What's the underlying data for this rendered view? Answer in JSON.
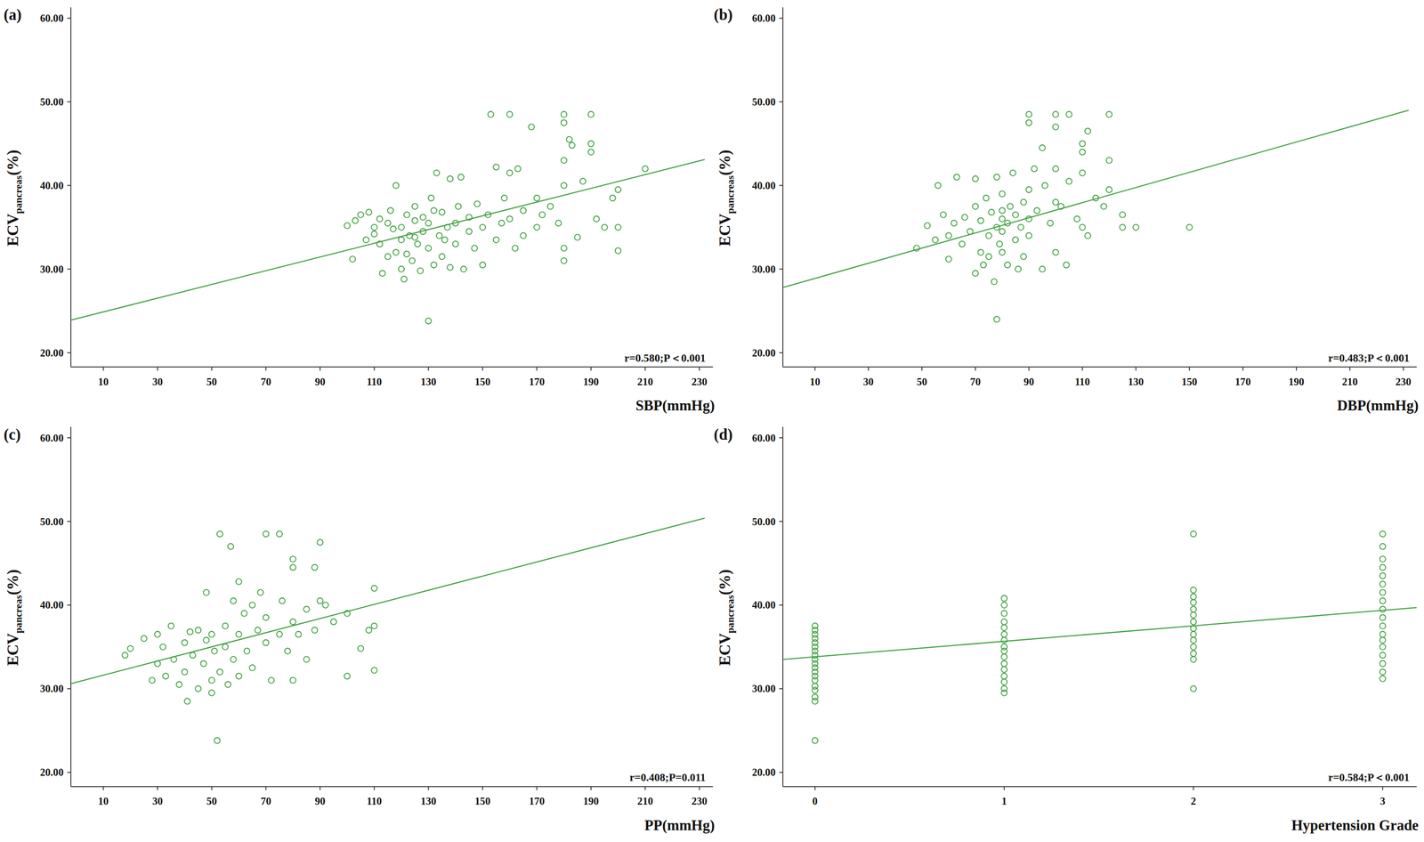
{
  "chart_data": [
    {
      "type": "scatter",
      "title": "(a)",
      "xlabel": "SBP(mmHg)",
      "ylabel": {
        "text": "ECV",
        "subscript": "pancreas",
        "suffix": "(%)"
      },
      "annotation": "r=0.580;P＜0.001",
      "xlim": [
        -2,
        235
      ],
      "ylim": [
        18.3,
        61.3
      ],
      "xticks": [
        10,
        30,
        50,
        70,
        90,
        110,
        130,
        150,
        170,
        190,
        210,
        230
      ],
      "yticks": [
        {
          "value": 20,
          "label": "20.00"
        },
        {
          "value": 30,
          "label": "30.00"
        },
        {
          "value": 40,
          "label": "40.00"
        },
        {
          "value": 50,
          "label": "50.00"
        },
        {
          "value": 60,
          "label": "60.00"
        }
      ],
      "series": [
        {
          "type": "scatter",
          "marker": "circle",
          "color": "#3f9f3f",
          "x": [
            100,
            102,
            103,
            105,
            107,
            108,
            110,
            110,
            112,
            112,
            113,
            115,
            115,
            116,
            117,
            118,
            118,
            120,
            120,
            120,
            121,
            122,
            123,
            124,
            125,
            125,
            126,
            127,
            128,
            128,
            130,
            130,
            130,
            131,
            132,
            132,
            133,
            134,
            135,
            135,
            136,
            137,
            138,
            138,
            140,
            140,
            141,
            142,
            143,
            145,
            145,
            147,
            148,
            150,
            150,
            152,
            153,
            155,
            155,
            157,
            158,
            160,
            160,
            160,
            162,
            163,
            165,
            165,
            168,
            170,
            170,
            172,
            175,
            178,
            180,
            180,
            180,
            180,
            180,
            180,
            182,
            183,
            185,
            187,
            190,
            190,
            190,
            192,
            195,
            198,
            200,
            200,
            200,
            210,
            125,
            122
          ],
          "values": [
            35.2,
            31.2,
            35.8,
            36.5,
            33.5,
            36.8,
            35.0,
            34.2,
            36.0,
            33.0,
            29.5,
            35.5,
            31.5,
            37.0,
            34.8,
            40.0,
            32.0,
            35.0,
            33.5,
            30.0,
            28.8,
            36.5,
            34.0,
            31.0,
            37.5,
            35.8,
            33.0,
            29.8,
            36.2,
            34.5,
            23.8,
            35.5,
            32.5,
            38.5,
            37.0,
            30.5,
            41.5,
            34.0,
            36.8,
            31.5,
            33.5,
            35.0,
            30.2,
            40.8,
            35.5,
            33.0,
            37.5,
            41.0,
            30.0,
            34.5,
            36.2,
            32.5,
            37.8,
            30.5,
            35.0,
            36.5,
            48.5,
            42.2,
            33.5,
            35.5,
            38.5,
            48.5,
            41.5,
            36.0,
            32.5,
            42.0,
            37.0,
            34.0,
            47.0,
            38.5,
            35.0,
            36.5,
            37.5,
            35.5,
            48.5,
            47.5,
            43.0,
            40.0,
            31.0,
            32.5,
            45.5,
            44.8,
            33.8,
            40.5,
            48.5,
            45.0,
            44.0,
            36.0,
            35.0,
            38.5,
            39.5,
            35.0,
            32.2,
            42.0,
            33.8,
            31.8
          ]
        },
        {
          "type": "line",
          "color": "#3f9f3f",
          "x": [
            -2,
            232
          ],
          "values": [
            23.9,
            43.1
          ]
        }
      ]
    },
    {
      "type": "scatter",
      "title": "(b)",
      "xlabel": "DBP(mmHg)",
      "ylabel": {
        "text": "ECV",
        "subscript": "pancreas",
        "suffix": "(%)"
      },
      "annotation": "r=0.483;P＜0.001",
      "xlim": [
        -2,
        235
      ],
      "ylim": [
        18.3,
        61.3
      ],
      "xticks": [
        10,
        30,
        50,
        70,
        90,
        110,
        130,
        150,
        170,
        190,
        210,
        230
      ],
      "yticks": [
        {
          "value": 20,
          "label": "20.00"
        },
        {
          "value": 30,
          "label": "30.00"
        },
        {
          "value": 40,
          "label": "40.00"
        },
        {
          "value": 50,
          "label": "50.00"
        },
        {
          "value": 60,
          "label": "60.00"
        }
      ],
      "series": [
        {
          "type": "scatter",
          "marker": "circle",
          "color": "#3f9f3f",
          "x": [
            48,
            52,
            55,
            56,
            58,
            60,
            60,
            62,
            63,
            65,
            66,
            68,
            70,
            70,
            70,
            72,
            72,
            73,
            74,
            75,
            75,
            76,
            77,
            78,
            78,
            78,
            79,
            80,
            80,
            80,
            80,
            80,
            82,
            82,
            83,
            84,
            85,
            85,
            86,
            87,
            88,
            88,
            90,
            90,
            90,
            90,
            90,
            92,
            93,
            95,
            95,
            96,
            98,
            100,
            100,
            100,
            100,
            100,
            102,
            104,
            105,
            105,
            108,
            110,
            110,
            110,
            110,
            112,
            112,
            115,
            118,
            120,
            120,
            120,
            125,
            125,
            130,
            150
          ],
          "values": [
            32.5,
            35.2,
            33.5,
            40.0,
            36.5,
            31.2,
            34.0,
            35.5,
            41.0,
            33.0,
            36.2,
            34.5,
            40.8,
            37.5,
            29.5,
            32.0,
            35.8,
            30.5,
            38.5,
            34.0,
            31.5,
            36.8,
            28.5,
            24.0,
            35.0,
            41.0,
            33.0,
            37.0,
            36.0,
            34.5,
            32.0,
            39.0,
            30.5,
            35.5,
            37.5,
            41.5,
            33.5,
            36.5,
            30.0,
            35.0,
            38.0,
            31.5,
            36.0,
            34.0,
            48.5,
            47.5,
            39.5,
            42.0,
            37.0,
            30.0,
            44.5,
            40.0,
            35.5,
            48.5,
            42.0,
            38.0,
            32.0,
            47.0,
            37.5,
            30.5,
            48.5,
            40.5,
            36.0,
            41.5,
            45.0,
            44.0,
            35.0,
            46.5,
            34.0,
            38.5,
            37.5,
            48.5,
            43.0,
            39.5,
            36.5,
            35.0,
            35.0,
            35.0
          ]
        },
        {
          "type": "line",
          "color": "#3f9f3f",
          "x": [
            -2,
            232
          ],
          "values": [
            27.8,
            49.0
          ]
        }
      ]
    },
    {
      "type": "scatter",
      "title": "(c)",
      "xlabel": "PP(mmHg)",
      "ylabel": {
        "text": "ECV",
        "subscript": "pancreas",
        "suffix": "(%)"
      },
      "annotation": "r=0.408;P=0.011",
      "xlim": [
        -2,
        235
      ],
      "ylim": [
        18.3,
        61.3
      ],
      "xticks": [
        10,
        30,
        50,
        70,
        90,
        110,
        130,
        150,
        170,
        190,
        210,
        230
      ],
      "yticks": [
        {
          "value": 20,
          "label": "20.00"
        },
        {
          "value": 30,
          "label": "30.00"
        },
        {
          "value": 40,
          "label": "40.00"
        },
        {
          "value": 50,
          "label": "50.00"
        },
        {
          "value": 60,
          "label": "60.00"
        }
      ],
      "series": [
        {
          "type": "scatter",
          "marker": "circle",
          "color": "#3f9f3f",
          "x": [
            18,
            20,
            25,
            28,
            30,
            30,
            32,
            33,
            35,
            36,
            38,
            40,
            40,
            41,
            42,
            43,
            45,
            45,
            47,
            48,
            48,
            50,
            50,
            50,
            51,
            52,
            53,
            53,
            55,
            55,
            56,
            57,
            58,
            58,
            60,
            60,
            60,
            62,
            63,
            65,
            65,
            67,
            68,
            70,
            70,
            70,
            72,
            75,
            75,
            76,
            78,
            80,
            80,
            80,
            80,
            82,
            85,
            85,
            88,
            88,
            90,
            90,
            92,
            95,
            100,
            100,
            105,
            108,
            110,
            110,
            110
          ],
          "values": [
            34.0,
            34.8,
            36.0,
            31.0,
            33.0,
            36.5,
            35.0,
            31.5,
            37.5,
            33.5,
            30.5,
            35.5,
            32.0,
            28.5,
            36.8,
            34.0,
            30.0,
            37.0,
            33.0,
            35.8,
            41.5,
            31.0,
            29.5,
            36.5,
            34.5,
            23.8,
            48.5,
            32.0,
            37.5,
            35.0,
            30.5,
            47.0,
            33.5,
            40.5,
            42.8,
            36.5,
            31.5,
            39.0,
            34.5,
            40.0,
            32.5,
            37.0,
            41.5,
            35.5,
            48.5,
            38.5,
            31.0,
            48.5,
            36.5,
            40.5,
            34.5,
            45.5,
            44.5,
            38.0,
            31.0,
            36.5,
            33.5,
            39.5,
            44.5,
            37.0,
            47.5,
            40.5,
            40.0,
            38.0,
            39.0,
            31.5,
            34.8,
            37.0,
            37.5,
            42.0,
            32.2
          ]
        },
        {
          "type": "line",
          "color": "#3f9f3f",
          "x": [
            -2,
            232
          ],
          "values": [
            30.6,
            50.4
          ]
        }
      ]
    },
    {
      "type": "scatter",
      "title": "(d)",
      "xlabel": "Hypertension Grade",
      "ylabel": {
        "text": "ECV",
        "subscript": "pancreas",
        "suffix": "(%)"
      },
      "annotation": "r=0.584;P＜0.001",
      "xlim": [
        -0.17,
        3.18
      ],
      "ylim": [
        18.3,
        61.3
      ],
      "xticks": [
        0,
        1,
        2,
        3
      ],
      "yticks": [
        {
          "value": 20,
          "label": "20.00"
        },
        {
          "value": 30,
          "label": "30.00"
        },
        {
          "value": 40,
          "label": "40.00"
        },
        {
          "value": 50,
          "label": "50.00"
        },
        {
          "value": 60,
          "label": "60.00"
        }
      ],
      "series": [
        {
          "type": "scatter",
          "marker": "circle",
          "color": "#3f9f3f",
          "x": [
            0,
            0,
            0,
            0,
            0,
            0,
            0,
            0,
            0,
            0,
            0,
            0,
            0,
            0,
            0,
            0,
            0,
            0,
            0,
            1,
            1,
            1,
            1,
            1,
            1,
            1,
            1,
            1,
            1,
            1,
            1,
            1,
            1,
            1,
            1,
            2,
            2,
            2,
            2,
            2,
            2,
            2,
            2,
            2,
            2,
            2,
            2,
            2,
            2,
            3,
            3,
            3,
            3,
            3,
            3,
            3,
            3,
            3,
            3,
            3,
            3,
            3,
            3,
            3,
            3,
            3,
            3
          ],
          "values": [
            23.8,
            28.5,
            29.0,
            29.8,
            30.3,
            31.0,
            31.5,
            32.0,
            32.5,
            33.0,
            33.5,
            34.0,
            34.5,
            35.0,
            35.5,
            36.0,
            36.5,
            37.0,
            37.5,
            29.5,
            30.0,
            30.8,
            31.5,
            32.3,
            33.0,
            33.8,
            34.5,
            35.0,
            35.8,
            36.5,
            37.3,
            38.0,
            39.0,
            40.0,
            40.8,
            30.0,
            33.5,
            34.2,
            35.0,
            35.8,
            36.5,
            37.2,
            38.0,
            38.8,
            39.5,
            40.3,
            41.0,
            41.8,
            48.5,
            31.2,
            32.0,
            33.0,
            34.0,
            35.0,
            35.8,
            36.5,
            37.5,
            38.5,
            39.5,
            40.5,
            41.5,
            42.5,
            43.5,
            44.5,
            45.5,
            47.0,
            48.5
          ]
        },
        {
          "type": "line",
          "color": "#3f9f3f",
          "x": [
            -0.17,
            3.18
          ],
          "values": [
            33.5,
            39.7
          ]
        }
      ]
    }
  ]
}
